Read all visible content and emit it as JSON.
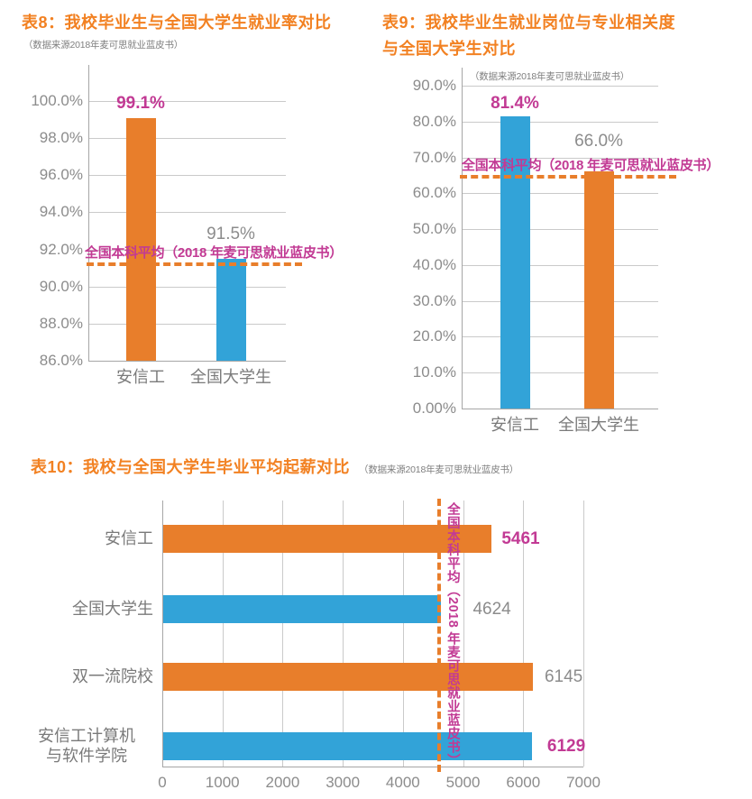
{
  "colors": {
    "bar_orange": "#E87E2B",
    "bar_blue": "#32A3D8",
    "magenta": "#C23A94",
    "title_orange": "#F28122",
    "gray": "#8C8C8C",
    "dark_gray": "#7A7A7A",
    "source_gray": "#7F7F7F",
    "grid": "#CACACA",
    "axis": "#A6A6A6"
  },
  "chart_data": [
    {
      "type": "bar",
      "orientation": "vertical",
      "title": "表8：我校毕业生与全国大学生就业率对比",
      "source": "（数据来源2018年麦可思就业蓝皮书）",
      "categories": [
        "安信工",
        "全国大学生"
      ],
      "values": [
        99.1,
        91.5
      ],
      "value_labels": [
        "99.1%",
        "91.5%"
      ],
      "value_label_colors": [
        "magenta",
        "gray"
      ],
      "bar_colors": [
        "bar_orange",
        "bar_blue"
      ],
      "ylim": [
        86,
        100
      ],
      "ytick_values": [
        100,
        98,
        96,
        94,
        92,
        90,
        88,
        86
      ],
      "ytick_labels": [
        "100.0%",
        "98.0%",
        "96.0%",
        "94.0%",
        "92.0%",
        "90.0%",
        "88.0%",
        "86.0%"
      ],
      "grid": true,
      "legend": false,
      "ref_line": {
        "value": 91.2,
        "label": "全国本科平均（2018 年麦可思就业蓝皮书）",
        "line_color": "bar_orange",
        "label_color": "magenta"
      }
    },
    {
      "type": "bar",
      "orientation": "vertical",
      "title": "表9：我校毕业生就业岗位与专业相关度\n与全国大学生对比",
      "source": "（数据来源2018年麦可思就业蓝皮书）",
      "categories": [
        "安信工",
        "全国大学生"
      ],
      "values": [
        81.4,
        66.0
      ],
      "value_labels": [
        "81.4%",
        "66.0%"
      ],
      "value_label_colors": [
        "magenta",
        "gray"
      ],
      "bar_colors": [
        "bar_blue",
        "bar_orange"
      ],
      "ylim": [
        0,
        90
      ],
      "ytick_values": [
        90,
        80,
        70,
        60,
        50,
        40,
        30,
        20,
        10,
        0
      ],
      "ytick_labels": [
        "90.0%",
        "80.0%",
        "70.0%",
        "60.0%",
        "50.0%",
        "40.0%",
        "30.0%",
        "20.0%",
        "10.0%",
        "0.00%"
      ],
      "grid": true,
      "legend": false,
      "ref_line": {
        "value": 64.6,
        "label": "全国本科平均（2018 年麦可思就业蓝皮书）",
        "line_color": "bar_orange",
        "label_color": "magenta"
      }
    },
    {
      "type": "bar",
      "orientation": "horizontal",
      "title": "表10：我校与全国大学生毕业平均起薪对比",
      "source": "（数据来源2018年麦可思就业蓝皮书）",
      "categories": [
        "安信工",
        "全国大学生",
        "双一流院校",
        "安信工计算机\n与软件学院"
      ],
      "values": [
        5461,
        4624,
        6145,
        6129
      ],
      "value_labels": [
        "5461",
        "4624",
        "6145",
        "6129"
      ],
      "value_label_colors": [
        "magenta",
        "gray",
        "gray",
        "magenta"
      ],
      "bar_colors": [
        "bar_orange",
        "bar_blue",
        "bar_orange",
        "bar_blue"
      ],
      "xlim": [
        0,
        7000
      ],
      "xtick_values": [
        0,
        1000,
        2000,
        3000,
        4000,
        5000,
        6000,
        7000
      ],
      "xtick_labels": [
        "0",
        "1000",
        "2000",
        "3000",
        "4000",
        "5000",
        "6000",
        "7000"
      ],
      "grid": true,
      "legend": false,
      "ref_line": {
        "value": 4600,
        "label": "全国本科平均（2018 年麦可思就业蓝皮书）",
        "line_color": "bar_orange",
        "label_color": "magenta"
      }
    }
  ]
}
